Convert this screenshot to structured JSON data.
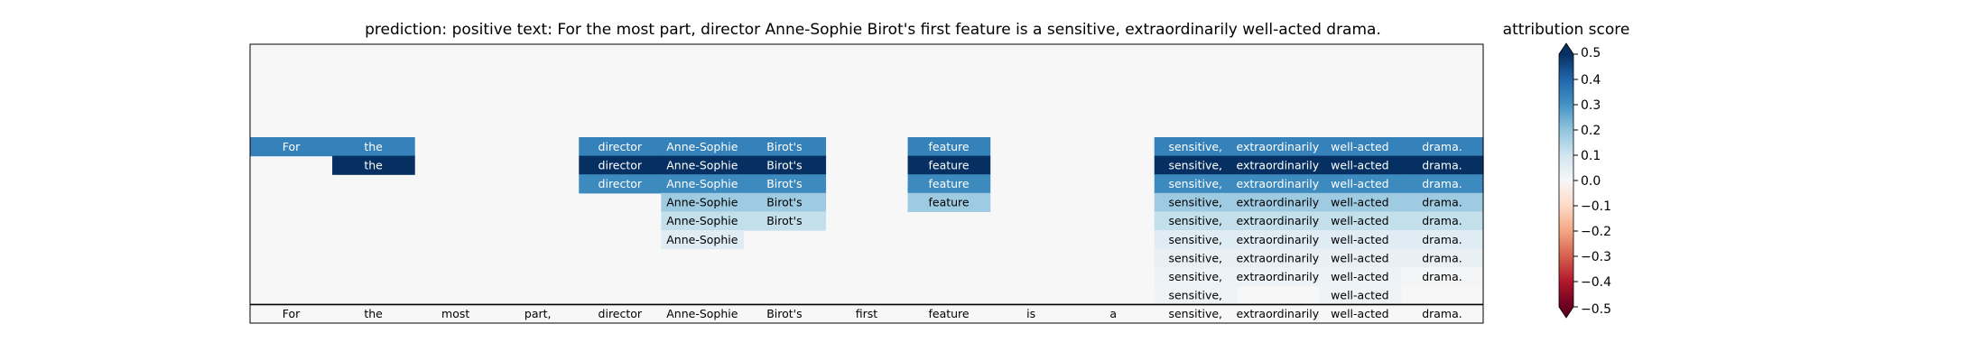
{
  "chart_data": {
    "type": "heatmap",
    "title": "prediction:  positive     text:  For the most part, director Anne-Sophie Birot's first feature is a sensitive, extraordinarily well-acted drama.",
    "tokens": [
      "For",
      "the",
      "most",
      "part,",
      "director",
      "Anne-Sophie",
      "Birot's",
      "first",
      "feature",
      "is",
      "a",
      "sensitive,",
      "extraordinarily",
      "well-acted",
      "drama."
    ],
    "rows": [
      [
        0.0,
        0.0,
        0.0,
        0.0,
        0.0,
        0.0,
        0.0,
        0.0,
        0.0,
        0.0,
        0.0,
        0.0,
        0.0,
        0.0,
        0.0
      ],
      [
        0.0,
        0.0,
        0.0,
        0.0,
        0.0,
        0.0,
        0.0,
        0.0,
        0.0,
        0.0,
        0.0,
        0.0,
        0.0,
        0.0,
        0.0
      ],
      [
        0.0,
        0.0,
        0.0,
        0.0,
        0.0,
        0.0,
        0.0,
        0.0,
        0.0,
        0.0,
        0.0,
        0.0,
        0.0,
        0.0,
        0.0
      ],
      [
        0.0,
        0.0,
        0.0,
        0.0,
        0.0,
        0.0,
        0.0,
        0.0,
        0.0,
        0.0,
        0.0,
        0.0,
        0.0,
        0.0,
        0.0
      ],
      [
        0.0,
        0.0,
        0.0,
        0.0,
        0.0,
        0.0,
        0.0,
        0.0,
        0.0,
        0.0,
        0.0,
        0.0,
        0.0,
        0.0,
        0.0
      ],
      [
        0.34,
        0.34,
        0.0,
        0.0,
        0.34,
        0.34,
        0.34,
        0.0,
        0.34,
        0.0,
        0.0,
        0.34,
        0.34,
        0.34,
        0.34
      ],
      [
        0.0,
        0.5,
        0.0,
        0.0,
        0.5,
        0.5,
        0.5,
        0.0,
        0.5,
        0.0,
        0.0,
        0.5,
        0.5,
        0.5,
        0.5
      ],
      [
        0.0,
        0.0,
        0.0,
        0.0,
        0.32,
        0.32,
        0.32,
        0.0,
        0.32,
        0.0,
        0.0,
        0.32,
        0.32,
        0.32,
        0.32
      ],
      [
        0.0,
        0.0,
        0.0,
        0.0,
        0.0,
        0.18,
        0.18,
        0.0,
        0.18,
        0.0,
        0.0,
        0.18,
        0.18,
        0.18,
        0.18
      ],
      [
        0.0,
        0.0,
        0.0,
        0.0,
        0.0,
        0.12,
        0.12,
        0.0,
        0.0,
        0.0,
        0.0,
        0.12,
        0.12,
        0.12,
        0.12
      ],
      [
        0.0,
        0.0,
        0.0,
        0.0,
        0.0,
        0.06,
        0.0,
        0.0,
        0.0,
        0.0,
        0.0,
        0.06,
        0.06,
        0.06,
        0.06
      ],
      [
        0.0,
        0.0,
        0.0,
        0.0,
        0.0,
        0.0,
        0.0,
        0.0,
        0.0,
        0.0,
        0.0,
        0.04,
        0.04,
        0.04,
        0.04
      ],
      [
        0.0,
        0.0,
        0.0,
        0.0,
        0.0,
        0.0,
        0.0,
        0.0,
        0.0,
        0.0,
        0.0,
        0.03,
        0.03,
        0.03,
        0.01
      ],
      [
        0.0,
        0.0,
        0.0,
        0.0,
        0.0,
        0.0,
        0.0,
        0.0,
        0.0,
        0.0,
        0.0,
        0.02,
        0.0,
        0.02,
        0.0
      ]
    ],
    "colorbar": {
      "label": "attribution score",
      "cmap": "RdBu",
      "vmin": -0.5,
      "vmax": 0.5,
      "ticks": [
        0.4,
        0.3,
        0.2,
        0.1,
        0.0,
        -0.1,
        -0.2,
        -0.3,
        -0.4
      ],
      "tick_labels": [
        "0.4",
        "0.3",
        "0.2",
        "0.1",
        "0.0",
        "−0.1",
        "−0.2",
        "−0.3",
        "−0.4"
      ],
      "extra_ticks": [
        0.5,
        -0.5
      ],
      "extra_tick_labels": [
        "0.5",
        "−0.5"
      ],
      "extend": "both"
    }
  }
}
